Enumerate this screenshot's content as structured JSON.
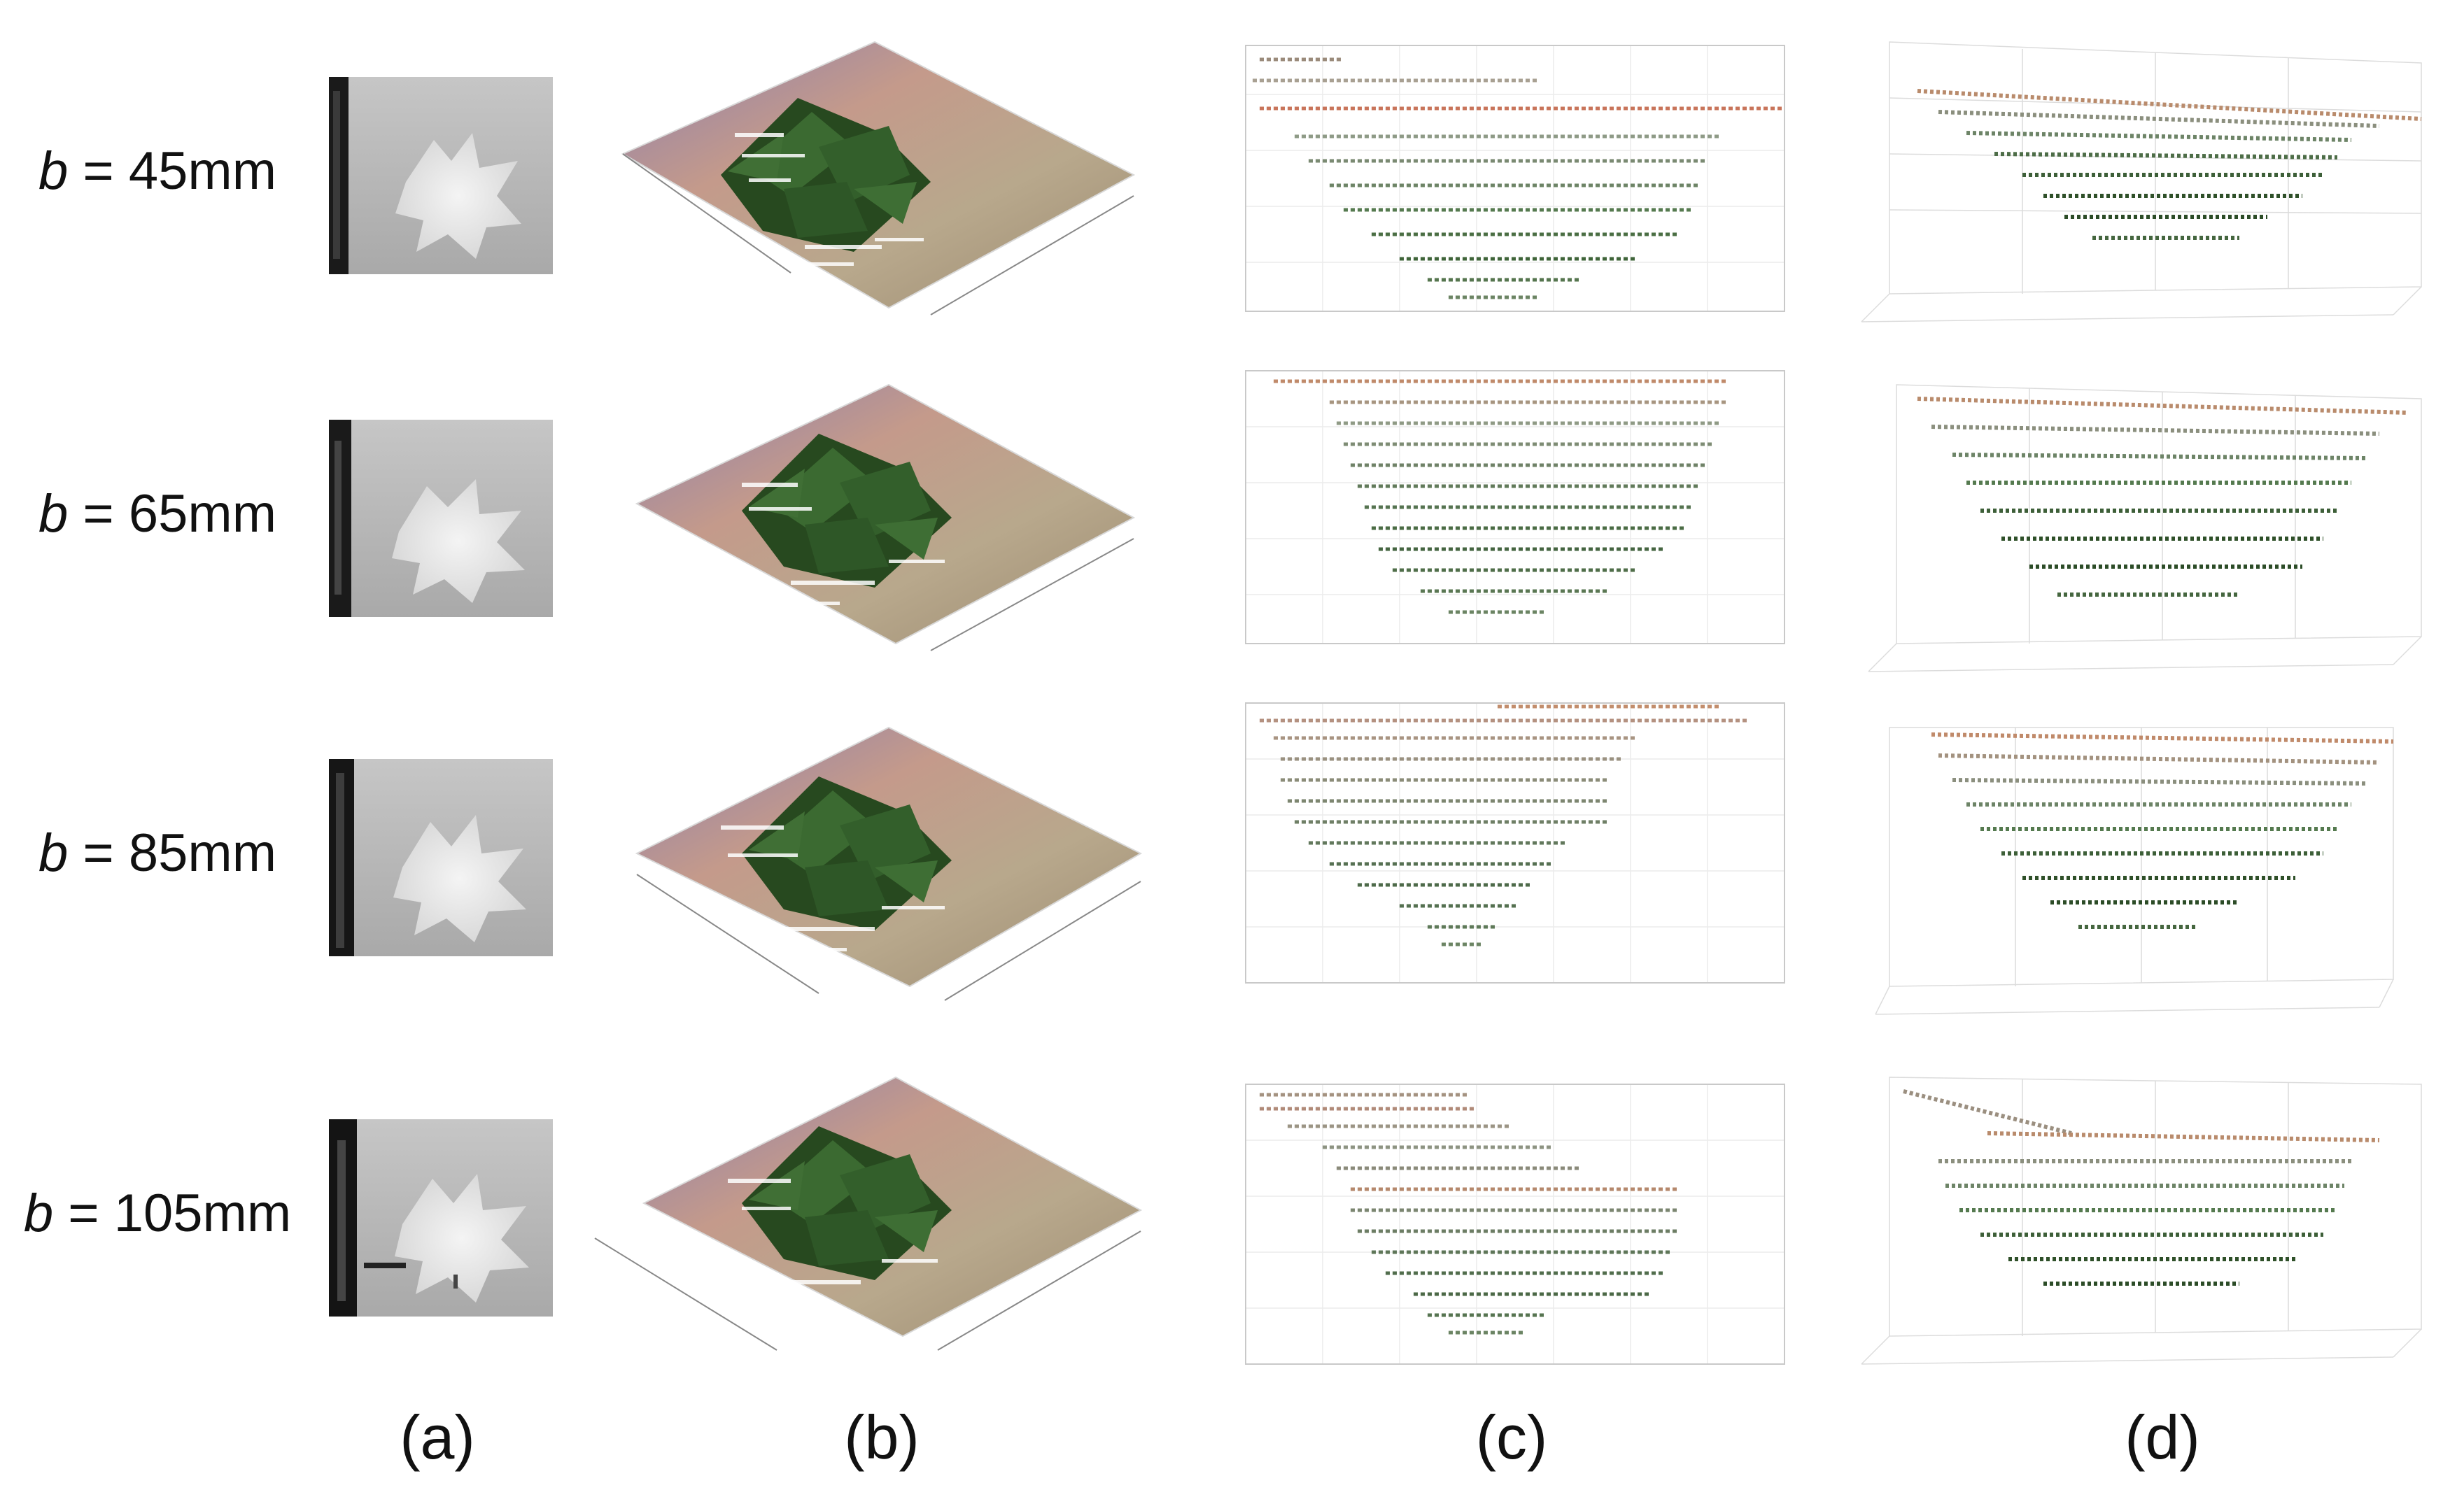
{
  "rows": [
    {
      "var": "b",
      "eq": " = 45mm"
    },
    {
      "var": "b",
      "eq": " = 65mm"
    },
    {
      "var": "b",
      "eq": " = 85mm"
    },
    {
      "var": "b",
      "eq": " = 105mm"
    }
  ],
  "columns": [
    "(a)",
    "(b)",
    "(c)",
    "(d)"
  ],
  "panels": {
    "a": "depth-map",
    "b": "3d-point-cloud-oblique",
    "c": "point-cloud-front-view",
    "d": "point-cloud-3d-front"
  },
  "colors": {
    "leaf": "#2f5a2a",
    "leaf_dark": "#1d3d1a",
    "depth_bg": "#bdbdbd",
    "depth_fg": "#e9e9e9",
    "grid": "#e4e4e4"
  }
}
